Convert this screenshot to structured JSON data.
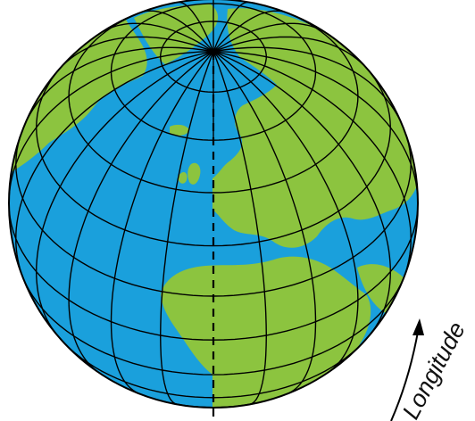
{
  "diagram": {
    "label": "Longitude",
    "colors": {
      "ocean": "#1aa0dc",
      "land": "#8cc43f",
      "grid": "#000000",
      "background": "#ffffff"
    }
  }
}
